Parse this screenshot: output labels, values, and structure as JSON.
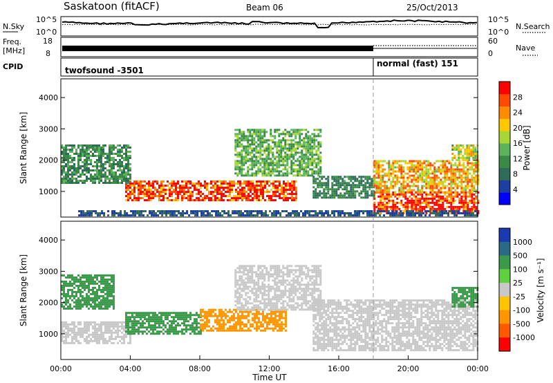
{
  "header": {
    "title": "Saskatoon (fitACF)",
    "beam": "Beam 06",
    "date": "25/Oct/2013"
  },
  "top_panel": {
    "left_label": "N.Sky",
    "left_tick_hi": "10^5",
    "left_tick_lo": "10^0",
    "right_tick_hi": "10^5",
    "right_tick_lo": "10^0",
    "right_label": "N.Search"
  },
  "freq_panel": {
    "left_label_1": "Freq.",
    "left_label_2": "[MHz]",
    "left_tick_hi": "18",
    "left_tick_lo": "8",
    "right_tick_hi": "60",
    "right_tick_lo": "0",
    "right_label": "Nave"
  },
  "cpid_panel": {
    "label": "CPID",
    "mode_1": "twofsound -3501",
    "mode_2": "normal (fast) 151"
  },
  "colors": {
    "power_scale": [
      "#0000ff",
      "#1c3fa0",
      "#2e6b5a",
      "#3a8a46",
      "#5cb35c",
      "#a7d636",
      "#ffc800",
      "#ff8c00",
      "#ff4a00",
      "#ff0000"
    ],
    "velocity_scale": [
      "#ff0000",
      "#ff5a00",
      "#ff9600",
      "#ffc400",
      "#c8c8c8",
      "#c8c8c8",
      "#60d040",
      "#3a9a4a",
      "#2a6a86",
      "#1a3ab0"
    ]
  },
  "power_colorbar": {
    "label": "Power [dB]",
    "ticks": [
      "4",
      "8",
      "12",
      "16",
      "20",
      "24",
      "28"
    ]
  },
  "velocity_colorbar": {
    "label": "Velocity [m s⁻¹]",
    "ticks": [
      "1000",
      "500",
      "100",
      "25",
      "-25",
      "-100",
      "-500",
      "-1000"
    ]
  },
  "chart_data": [
    {
      "type": "heatmap",
      "title": "",
      "xlabel": "",
      "ylabel": "Slant Range [km]",
      "xlim": [
        0,
        24
      ],
      "ylim": [
        180,
        4600
      ],
      "y_ticks": [
        "1000",
        "2000",
        "3000",
        "4000"
      ],
      "colorbar": "Power [dB]",
      "cbar_range": [
        0,
        32
      ],
      "cells": [
        {
          "t0": 3.7,
          "t1": 13.5,
          "r0": 700,
          "r1": 1350,
          "v": 29
        },
        {
          "t0": 18.0,
          "t1": 24.0,
          "r0": 300,
          "r1": 1000,
          "v": 29
        },
        {
          "t0": 0.0,
          "t1": 4.0,
          "r0": 1300,
          "r1": 2500,
          "v": 11
        },
        {
          "t0": 10.0,
          "t1": 15.0,
          "r0": 1500,
          "r1": 3000,
          "v": 14
        },
        {
          "t0": 14.5,
          "t1": 18.0,
          "r0": 800,
          "r1": 1500,
          "v": 10
        },
        {
          "t0": 18.0,
          "t1": 24.0,
          "r0": 1000,
          "r1": 2000,
          "v": 22
        },
        {
          "t0": 22.5,
          "t1": 24.0,
          "r0": 2000,
          "r1": 2500,
          "v": 18
        },
        {
          "t0": 1.0,
          "t1": 24.0,
          "r0": 250,
          "r1": 400,
          "v": 6
        }
      ]
    },
    {
      "type": "heatmap",
      "title": "",
      "xlabel": "Time UT",
      "ylabel": "Slant Range [km]",
      "xlim": [
        0,
        24
      ],
      "ylim": [
        180,
        4600
      ],
      "x_ticks": [
        "00:00",
        "04:00",
        "08:00",
        "12:00",
        "16:00",
        "20:00",
        "00:00"
      ],
      "y_ticks": [
        "1000",
        "2000",
        "3000",
        "4000"
      ],
      "colorbar": "Velocity [m s⁻¹]",
      "cbar_ticks": [
        1000,
        500,
        100,
        25,
        -25,
        -100,
        -500,
        -1000
      ],
      "cells": [
        {
          "t0": 0.0,
          "t1": 4.0,
          "r0": 700,
          "r1": 1400,
          "v": 0
        },
        {
          "t0": 3.7,
          "t1": 8.0,
          "r0": 1000,
          "r1": 1700,
          "v": 150
        },
        {
          "t0": 8.0,
          "t1": 13.0,
          "r0": 1100,
          "r1": 1800,
          "v": -150
        },
        {
          "t0": 10.0,
          "t1": 15.0,
          "r0": 1800,
          "r1": 3200,
          "v": 0
        },
        {
          "t0": 14.5,
          "t1": 24.0,
          "r0": 500,
          "r1": 2100,
          "v": 0
        },
        {
          "t0": 0.0,
          "t1": 3.0,
          "r0": 1800,
          "r1": 2900,
          "v": 300
        },
        {
          "t0": 22.5,
          "t1": 24.0,
          "r0": 1900,
          "r1": 2500,
          "v": 200
        }
      ]
    }
  ]
}
